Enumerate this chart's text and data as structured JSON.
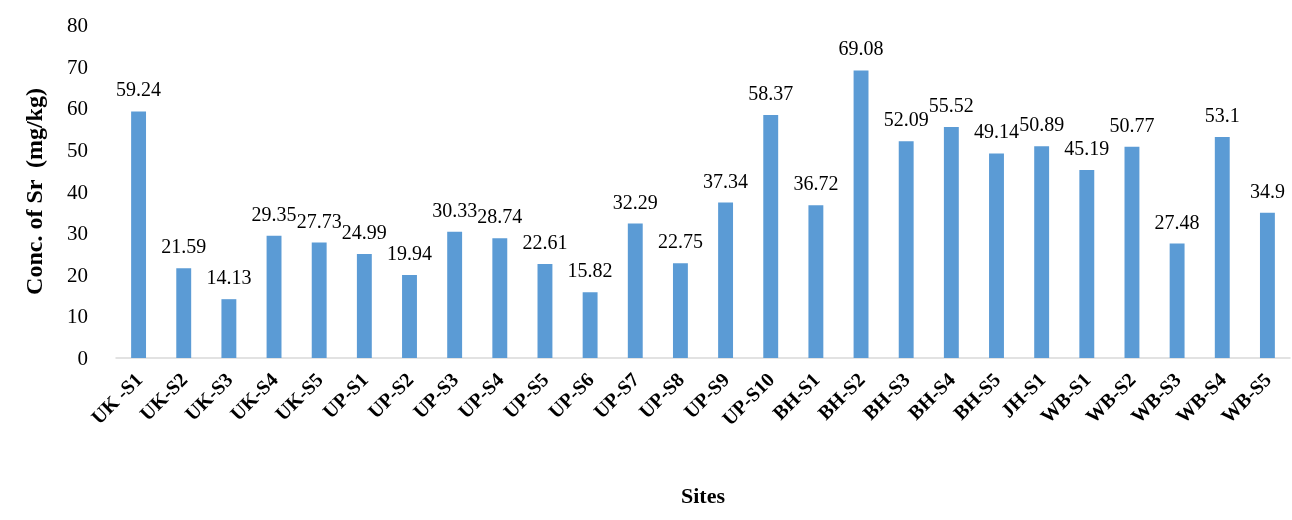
{
  "chart_data": {
    "type": "bar",
    "xlabel": "Sites",
    "ylabel": "Conc. of Sr  (mg/kg)",
    "categories": [
      "UK -S1",
      "UK-S2",
      "UK-S3",
      "UK-S4",
      "UK-S5",
      "UP-S1",
      "UP-S2",
      "UP-S3",
      "UP-S4",
      "UP-S5",
      "UP-S6",
      "UP-S7",
      "UP-S8",
      "UP-S9",
      "UP-S10",
      "BH-S1",
      "BH-S2",
      "BH-S3",
      "BH-S4",
      "BH-S5",
      "JH-S1",
      "WB-S1",
      "WB-S2",
      "WB-S3",
      "WB-S4",
      "WB-S5"
    ],
    "values": [
      59.24,
      21.59,
      14.13,
      29.35,
      27.73,
      24.99,
      19.94,
      30.33,
      28.74,
      22.61,
      15.82,
      32.29,
      22.75,
      37.34,
      58.37,
      36.72,
      69.08,
      52.09,
      55.52,
      49.14,
      50.89,
      45.19,
      50.77,
      27.48,
      53.1,
      34.9
    ],
    "color": "#5b9bd5",
    "ylim": [
      0,
      80
    ],
    "yticks": [
      0,
      10,
      20,
      30,
      40,
      50,
      60,
      70,
      80
    ],
    "grid": false,
    "data_labels": true
  }
}
